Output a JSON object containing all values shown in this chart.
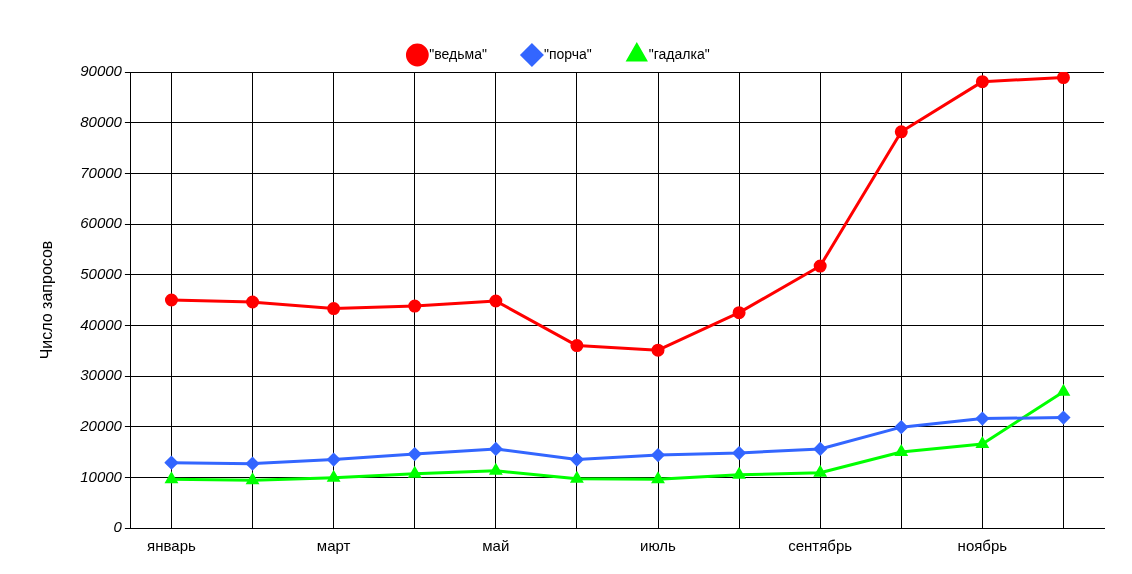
{
  "chart_data": {
    "type": "line",
    "ylabel": "Число запросов",
    "categories": [
      "январь",
      null,
      "март",
      null,
      "май",
      null,
      "июль",
      null,
      "сентябрь",
      null,
      "ноябрь",
      null
    ],
    "series": [
      {
        "name": "\"ведьма\"",
        "color": "#ff0000",
        "marker": "circle",
        "values": [
          45000,
          44600,
          43300,
          43800,
          44800,
          36000,
          35100,
          42500,
          51700,
          78200,
          88100,
          88900
        ]
      },
      {
        "name": "\"порча\"",
        "color": "#3366ff",
        "marker": "diamond",
        "values": [
          12900,
          12700,
          13500,
          14600,
          15600,
          13500,
          14400,
          14800,
          15600,
          19900,
          21600,
          21800
        ]
      },
      {
        "name": "\"гадалка\"",
        "color": "#00ff00",
        "marker": "triangle",
        "values": [
          9600,
          9400,
          9900,
          10700,
          11300,
          9700,
          9600,
          10500,
          10900,
          15000,
          16600,
          26900
        ]
      }
    ],
    "ylim": [
      0,
      90000
    ],
    "yticks": [
      0,
      10000,
      20000,
      30000,
      40000,
      50000,
      60000,
      70000,
      80000,
      90000
    ],
    "grid": true,
    "legend": "top"
  }
}
